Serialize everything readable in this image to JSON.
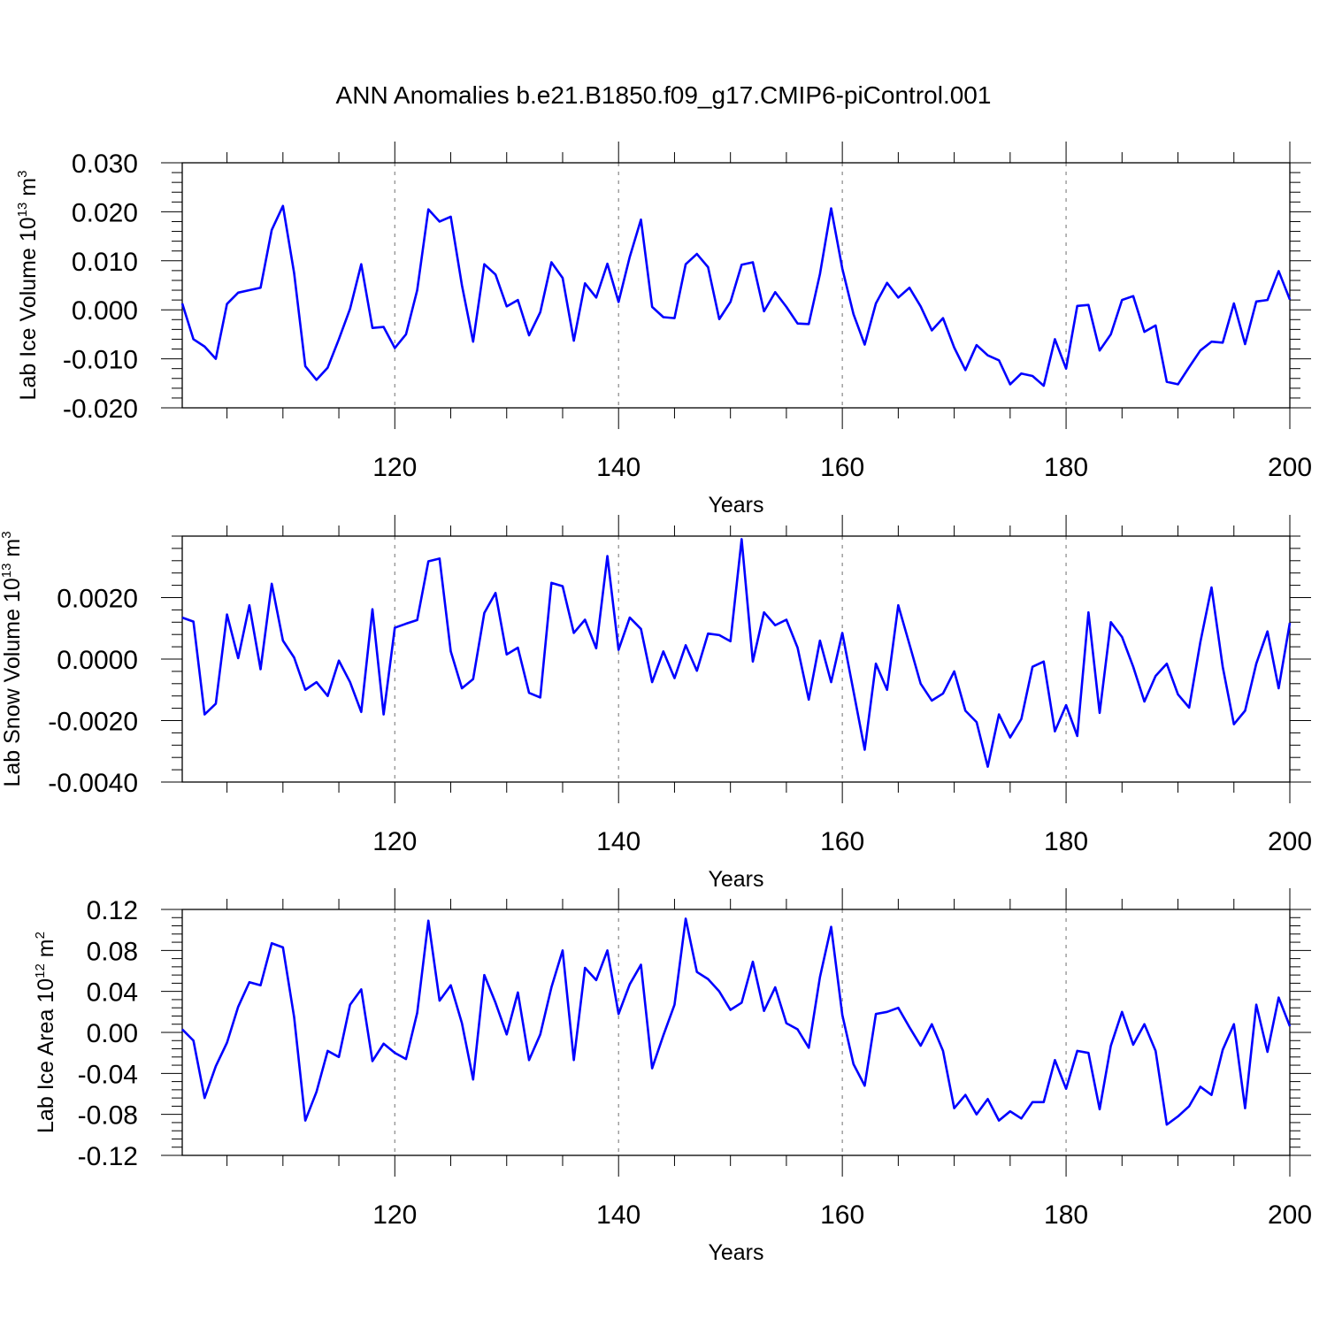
{
  "title": "ANN Anomalies b.e21.B1850.f09_g17.CMIP6-piControl.001",
  "line_color": "#0000ff",
  "chart_data": [
    {
      "type": "line",
      "ylabel": "Lab Ice Volume",
      "units": {
        "base": "10",
        "exp": "13",
        "unit": "m",
        "unit_exp": "3"
      },
      "xlabel": "Years",
      "xlim": [
        101,
        200
      ],
      "ylim": [
        -0.02,
        0.03
      ],
      "yticks": [
        -0.02,
        -0.01,
        0.0,
        0.01,
        0.02,
        0.03
      ],
      "ytick_labels": [
        "-0.020",
        "-0.010",
        "0.000",
        "0.010",
        "0.020",
        "0.030"
      ],
      "xticks": [
        120,
        140,
        160,
        180,
        200
      ],
      "xtick_labels": [
        "120",
        "140",
        "160",
        "180",
        "200"
      ],
      "vlines": [
        120,
        140,
        160,
        180
      ],
      "x_start": 101,
      "values": [
        0.0013,
        -0.006,
        -0.0075,
        -0.01,
        0.0012,
        0.0035,
        0.004,
        0.0045,
        0.0163,
        0.0212,
        0.0075,
        -0.0115,
        -0.0143,
        -0.0118,
        -0.006,
        0.0002,
        0.0093,
        -0.0037,
        -0.0035,
        -0.0078,
        -0.005,
        0.004,
        0.0205,
        0.018,
        0.019,
        0.005,
        -0.0065,
        0.0093,
        0.0072,
        0.0007,
        0.002,
        -0.0052,
        -0.0005,
        0.0097,
        0.0065,
        -0.0063,
        0.0054,
        0.0025,
        0.0094,
        0.0016,
        0.0108,
        0.0184,
        0.0006,
        -0.0015,
        -0.0017,
        0.0093,
        0.0114,
        0.0087,
        -0.0019,
        0.0016,
        0.0092,
        0.0097,
        -0.0003,
        0.0036,
        0.0006,
        -0.0028,
        -0.0029,
        0.0073,
        0.0207,
        0.0084,
        -0.0009,
        -0.0071,
        0.0013,
        0.0055,
        0.0025,
        0.0045,
        0.0007,
        -0.0042,
        -0.0017,
        -0.0077,
        -0.0123,
        -0.0072,
        -0.0093,
        -0.0103,
        -0.0152,
        -0.013,
        -0.0135,
        -0.0155,
        -0.006,
        -0.012,
        0.0008,
        0.001,
        -0.0083,
        -0.005,
        0.002,
        0.0028,
        -0.0045,
        -0.0032,
        -0.0147,
        -0.0152,
        -0.0117,
        -0.0083,
        -0.0065,
        -0.0067,
        0.0013,
        -0.007,
        0.0017,
        0.002,
        0.0079,
        0.0021
      ]
    },
    {
      "type": "line",
      "ylabel": "Lab Snow Volume",
      "units": {
        "base": "10",
        "exp": "13",
        "unit": "m",
        "unit_exp": "3"
      },
      "xlabel": "Years",
      "xlim": [
        101,
        200
      ],
      "ylim": [
        -0.004,
        0.004
      ],
      "yticks": [
        -0.004,
        -0.002,
        0.0,
        0.002
      ],
      "ytick_labels": [
        "-0.0040",
        "-0.0020",
        "0.0000",
        "0.0020"
      ],
      "xticks": [
        120,
        140,
        160,
        180,
        200
      ],
      "xtick_labels": [
        "120",
        "140",
        "160",
        "180",
        "200"
      ],
      "vlines": [
        120,
        140,
        160,
        180
      ],
      "x_start": 101,
      "values": [
        0.00135,
        0.00122,
        -0.0018,
        -0.00145,
        0.00145,
        3e-05,
        0.00175,
        -0.00033,
        0.00245,
        0.0006,
        5e-05,
        -0.001,
        -0.00075,
        -0.0012,
        -5e-05,
        -0.00075,
        -0.00172,
        0.00162,
        -0.0018,
        0.00102,
        0.00115,
        0.00127,
        0.00318,
        0.00327,
        0.00025,
        -0.00095,
        -0.00065,
        0.0015,
        0.00215,
        0.00015,
        0.00037,
        -0.0011,
        -0.00125,
        0.00248,
        0.00237,
        0.00085,
        0.00128,
        0.00035,
        0.00335,
        0.0003,
        0.00135,
        0.00098,
        -0.00075,
        0.00025,
        -0.00062,
        0.00045,
        -0.00038,
        0.00083,
        0.00078,
        0.00058,
        0.0039,
        -8e-05,
        0.00152,
        0.0011,
        0.00128,
        0.00037,
        -0.00132,
        0.0006,
        -0.00075,
        0.00085,
        -0.00105,
        -0.00295,
        -0.00015,
        -0.001,
        0.00175,
        0.00048,
        -0.0008,
        -0.00135,
        -0.00112,
        -0.0004,
        -0.00168,
        -0.00205,
        -0.0035,
        -0.0018,
        -0.00255,
        -0.00195,
        -0.00025,
        -8e-05,
        -0.00235,
        -0.0015,
        -0.0025,
        0.00152,
        -0.00175,
        0.0012,
        0.00072,
        -0.00025,
        -0.00138,
        -0.00055,
        -0.00015,
        -0.00115,
        -0.00158,
        0.00055,
        0.00233,
        -0.00025,
        -0.00212,
        -0.00168,
        -0.00015,
        0.0009,
        -0.00095,
        0.00118
      ]
    },
    {
      "type": "line",
      "ylabel": "Lab Ice Area",
      "units": {
        "base": "10",
        "exp": "12",
        "unit": "m",
        "unit_exp": "2"
      },
      "xlabel": "Years",
      "xlim": [
        101,
        200
      ],
      "ylim": [
        -0.12,
        0.12
      ],
      "yticks": [
        -0.12,
        -0.08,
        -0.04,
        0.0,
        0.04,
        0.08,
        0.12
      ],
      "ytick_labels": [
        "-0.12",
        "-0.08",
        "-0.04",
        "0.00",
        "0.04",
        "0.08",
        "0.12"
      ],
      "xticks": [
        120,
        140,
        160,
        180,
        200
      ],
      "xtick_labels": [
        "120",
        "140",
        "160",
        "180",
        "200"
      ],
      "vlines": [
        120,
        140,
        160,
        180
      ],
      "x_start": 101,
      "values": [
        0.003,
        -0.008,
        -0.064,
        -0.033,
        -0.01,
        0.025,
        0.049,
        0.046,
        0.087,
        0.083,
        0.015,
        -0.086,
        -0.058,
        -0.018,
        -0.024,
        0.027,
        0.042,
        -0.028,
        -0.011,
        -0.02,
        -0.026,
        0.019,
        0.109,
        0.031,
        0.046,
        0.009,
        -0.046,
        0.056,
        0.029,
        -0.002,
        0.039,
        -0.027,
        -0.002,
        0.044,
        0.08,
        -0.027,
        0.063,
        0.051,
        0.08,
        0.018,
        0.047,
        0.066,
        -0.035,
        -0.003,
        0.027,
        0.111,
        0.059,
        0.052,
        0.04,
        0.022,
        0.029,
        0.069,
        0.021,
        0.044,
        0.009,
        0.003,
        -0.015,
        0.054,
        0.103,
        0.017,
        -0.031,
        -0.052,
        0.018,
        0.02,
        0.024,
        0.005,
        -0.013,
        0.008,
        -0.018,
        -0.074,
        -0.061,
        -0.08,
        -0.065,
        -0.086,
        -0.077,
        -0.084,
        -0.068,
        -0.068,
        -0.027,
        -0.055,
        -0.018,
        -0.02,
        -0.075,
        -0.013,
        0.02,
        -0.012,
        0.008,
        -0.018,
        -0.09,
        -0.082,
        -0.072,
        -0.053,
        -0.061,
        -0.017,
        0.008,
        -0.074,
        0.027,
        -0.019,
        0.034,
        0.006
      ]
    }
  ]
}
